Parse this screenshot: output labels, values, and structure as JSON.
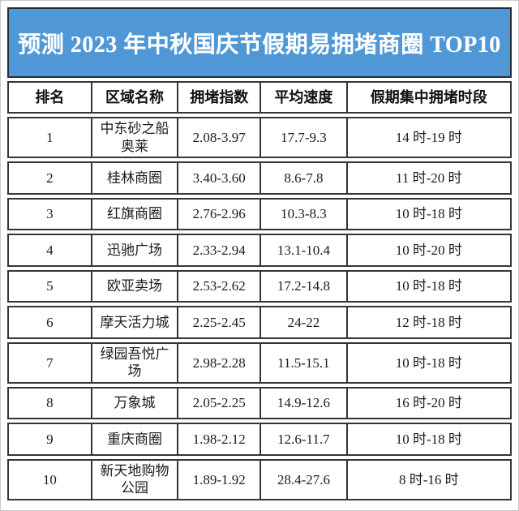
{
  "colors": {
    "banner_bg": "#4f97d5",
    "banner_text": "#ffffff",
    "banner_border": "#1f2f3d",
    "table_border": "#353535",
    "page_bg": "#ffffff"
  },
  "chart_data": {
    "type": "table",
    "title": "预测 2023 年中秋国庆节假期易拥堵商圈 TOP10",
    "columns": [
      "排名",
      "区域名称",
      "拥堵指数",
      "平均速度",
      "假期集中拥堵时段"
    ],
    "rows": [
      {
        "rank": "1",
        "area": "中东砂之船奥莱",
        "index": "2.08-3.97",
        "speed": "17.7-9.3",
        "period": "14 时-19 时"
      },
      {
        "rank": "2",
        "area": "桂林商圈",
        "index": "3.40-3.60",
        "speed": "8.6-7.8",
        "period": "11 时-20 时"
      },
      {
        "rank": "3",
        "area": "红旗商圈",
        "index": "2.76-2.96",
        "speed": "10.3-8.3",
        "period": "10 时-18 时"
      },
      {
        "rank": "4",
        "area": "迅驰广场",
        "index": "2.33-2.94",
        "speed": "13.1-10.4",
        "period": "10 时-20 时"
      },
      {
        "rank": "5",
        "area": "欧亚卖场",
        "index": "2.53-2.62",
        "speed": "17.2-14.8",
        "period": "10 时-18 时"
      },
      {
        "rank": "6",
        "area": "摩天活力城",
        "index": "2.25-2.45",
        "speed": "24-22",
        "period": "12 时-18 时"
      },
      {
        "rank": "7",
        "area": "绿园吾悦广场",
        "index": "2.98-2.28",
        "speed": "11.5-15.1",
        "period": "10 时-18 时"
      },
      {
        "rank": "8",
        "area": "万象城",
        "index": "2.05-2.25",
        "speed": "14.9-12.6",
        "period": "16 时-20 时"
      },
      {
        "rank": "9",
        "area": "重庆商圈",
        "index": "1.98-2.12",
        "speed": "12.6-11.7",
        "period": "10 时-18 时"
      },
      {
        "rank": "10",
        "area": "新天地购物公园",
        "index": "1.89-1.92",
        "speed": "28.4-27.6",
        "period": "8 时-16 时"
      }
    ]
  }
}
